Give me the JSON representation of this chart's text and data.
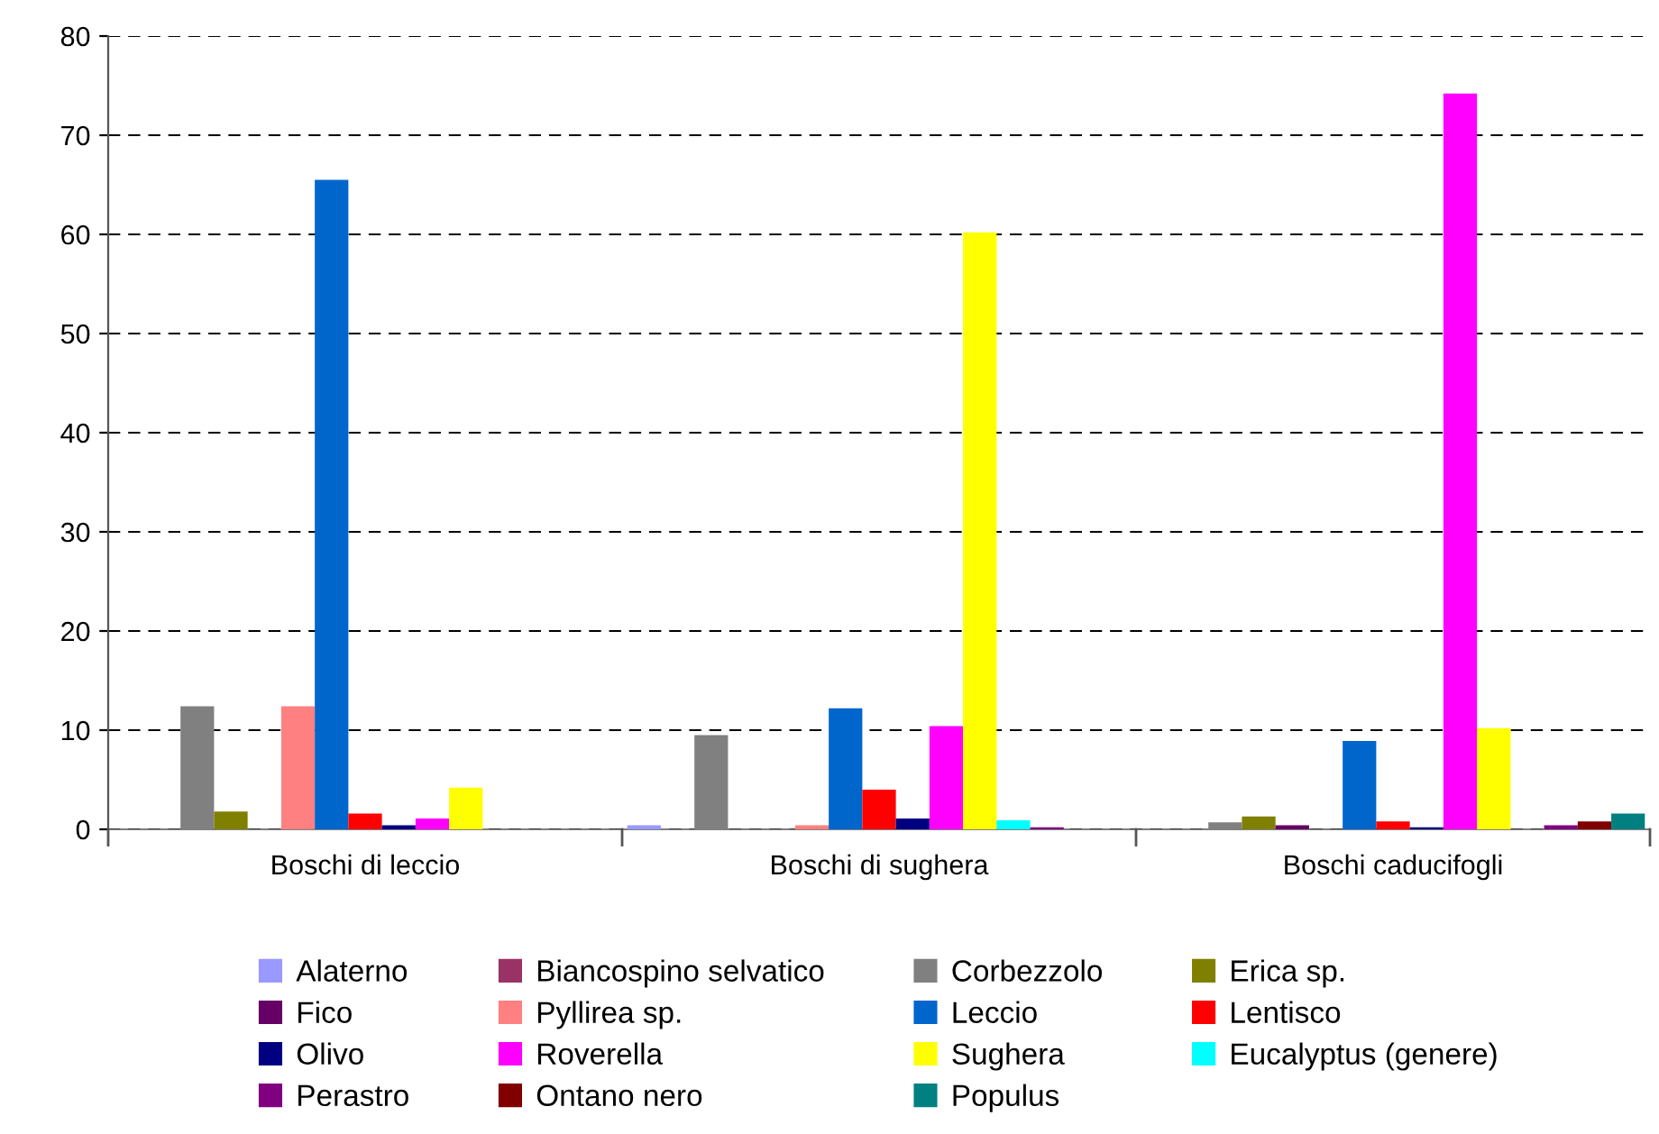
{
  "chart_data": {
    "type": "bar",
    "categories": [
      "Boschi di leccio",
      "Boschi di sughera",
      "Boschi caducifogli"
    ],
    "series": [
      {
        "name": "Alaterno",
        "color": "#9999ff",
        "values": [
          0,
          0.4,
          0
        ]
      },
      {
        "name": "Biancospino selvatico",
        "color": "#993366",
        "values": [
          0,
          0,
          0
        ]
      },
      {
        "name": "Corbezzolo",
        "color": "#808080",
        "values": [
          12.4,
          9.5,
          0.7
        ]
      },
      {
        "name": "Erica sp.",
        "color": "#808000",
        "values": [
          1.8,
          0,
          1.3
        ]
      },
      {
        "name": "Fico",
        "color": "#660066",
        "values": [
          0,
          0,
          0.4
        ]
      },
      {
        "name": "Pyllirea sp.",
        "color": "#ff8080",
        "values": [
          12.4,
          0.4,
          0
        ]
      },
      {
        "name": "Leccio",
        "color": "#0066cc",
        "values": [
          65.5,
          12.2,
          8.9
        ]
      },
      {
        "name": "Lentisco",
        "color": "#ff0000",
        "values": [
          1.6,
          4.0,
          0.8
        ]
      },
      {
        "name": "Olivo",
        "color": "#000080",
        "values": [
          0.4,
          1.1,
          0.2
        ]
      },
      {
        "name": "Roverella",
        "color": "#ff00ff",
        "values": [
          1.1,
          10.4,
          74.2
        ]
      },
      {
        "name": "Sughera",
        "color": "#ffff00",
        "values": [
          4.2,
          60.2,
          10.2
        ]
      },
      {
        "name": "Eucalyptus (genere)",
        "color": "#00ffff",
        "values": [
          0,
          0.9,
          0
        ]
      },
      {
        "name": "Perastro",
        "color": "#800080",
        "values": [
          0,
          0.2,
          0.4
        ]
      },
      {
        "name": "Ontano nero",
        "color": "#800000",
        "values": [
          0,
          0,
          0.8
        ]
      },
      {
        "name": "Populus",
        "color": "#008080",
        "values": [
          0,
          0,
          1.6
        ]
      }
    ],
    "ylim": [
      0,
      80
    ],
    "yticks": [
      0,
      10,
      20,
      30,
      40,
      50,
      60,
      70,
      80
    ],
    "grid": "y",
    "legend": "bottom"
  }
}
